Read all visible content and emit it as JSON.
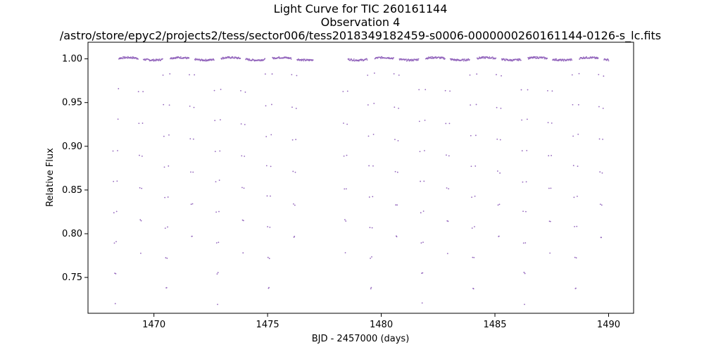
{
  "chart_data": {
    "type": "scatter",
    "title_lines": [
      "Light Curve for TIC 260161144",
      "Observation 4",
      "/astro/store/epyc2/projects2/tess/sector006/tess2018349182459-s0006-0000000260161144-0126-s_lc.fits"
    ],
    "xlabel": "BJD - 2457000 (days)",
    "ylabel": "Relative Flux",
    "xlim": [
      1467.1,
      1491.1
    ],
    "ylim": [
      0.709,
      1.019
    ],
    "xticks": [
      1470,
      1475,
      1480,
      1485,
      1490
    ],
    "yticks": [
      0.75,
      0.8,
      0.85,
      0.9,
      0.95,
      1.0
    ],
    "grid": false,
    "legend": "none",
    "marker_color": "#9467bd",
    "data_range": [
      1468.2,
      1490.0
    ],
    "gap": [
      1477.0,
      1478.3
    ],
    "out_of_eclipse_flux": 1.0,
    "primary_eclipse_depth": 0.72,
    "secondary_eclipse_depth": 0.778,
    "primary_eclipse_times": [
      1468.3,
      1470.55,
      1472.8,
      1475.05,
      1479.55,
      1481.8,
      1484.05,
      1486.3,
      1488.55
    ],
    "secondary_eclipse_times": [
      1469.42,
      1471.67,
      1473.92,
      1476.17,
      1478.42,
      1480.67,
      1482.92,
      1485.17,
      1487.42,
      1489.67
    ],
    "eclipse_half_width_days": 0.16
  }
}
